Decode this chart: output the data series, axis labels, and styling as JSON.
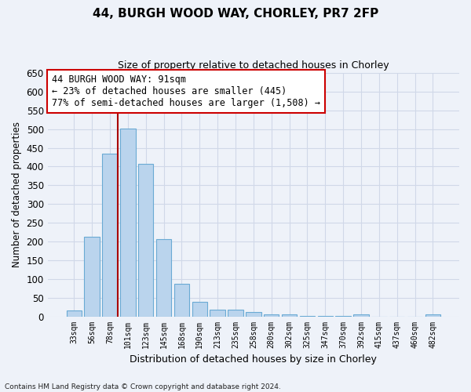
{
  "title": "44, BURGH WOOD WAY, CHORLEY, PR7 2FP",
  "subtitle": "Size of property relative to detached houses in Chorley",
  "xlabel": "Distribution of detached houses by size in Chorley",
  "ylabel": "Number of detached properties",
  "footnote1": "Contains HM Land Registry data © Crown copyright and database right 2024.",
  "categories": [
    "33sqm",
    "56sqm",
    "78sqm",
    "101sqm",
    "123sqm",
    "145sqm",
    "168sqm",
    "190sqm",
    "213sqm",
    "235sqm",
    "258sqm",
    "280sqm",
    "302sqm",
    "325sqm",
    "347sqm",
    "370sqm",
    "392sqm",
    "415sqm",
    "437sqm",
    "460sqm",
    "482sqm"
  ],
  "values": [
    15,
    212,
    435,
    502,
    407,
    207,
    86,
    39,
    18,
    17,
    11,
    6,
    5,
    1,
    1,
    1,
    5,
    0,
    0,
    0,
    5
  ],
  "bar_color": "#bad4ed",
  "bar_edge_color": "#6aaad4",
  "grid_color": "#d0d8e8",
  "vline_color": "#aa0000",
  "annotation_text": "44 BURGH WOOD WAY: 91sqm\n← 23% of detached houses are smaller (445)\n77% of semi-detached houses are larger (1,508) →",
  "annotation_box_color": "#ffffff",
  "annotation_box_edge": "#cc0000",
  "ylim": [
    0,
    650
  ],
  "yticks": [
    0,
    50,
    100,
    150,
    200,
    250,
    300,
    350,
    400,
    450,
    500,
    550,
    600,
    650
  ],
  "background_color": "#eef2f9",
  "title_fontsize": 11,
  "subtitle_fontsize": 9
}
